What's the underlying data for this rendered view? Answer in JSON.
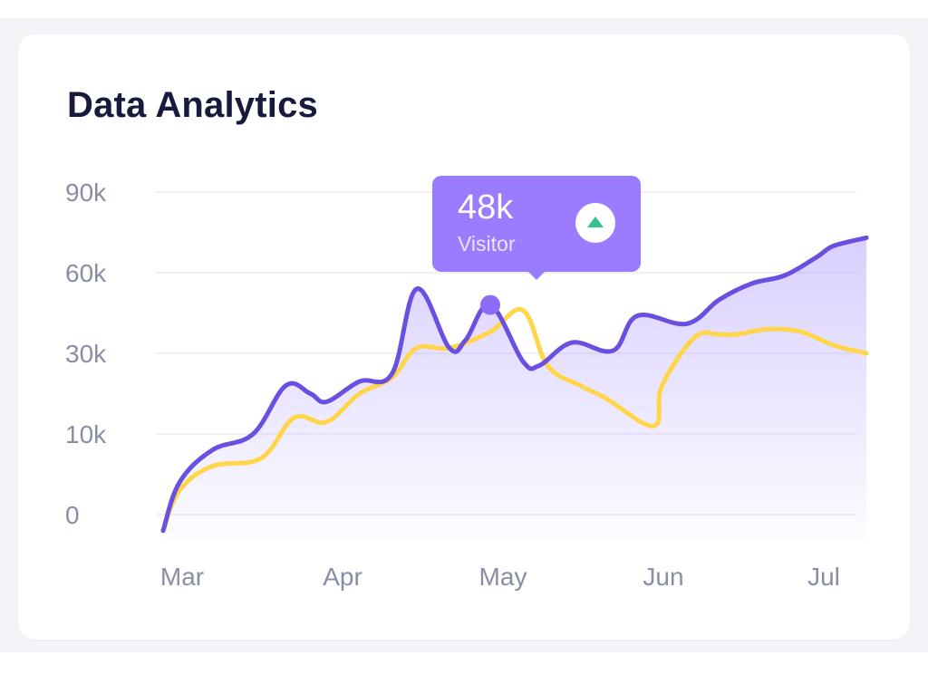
{
  "card": {
    "title": "Data Analytics"
  },
  "tooltip": {
    "value": "48k",
    "label": "Visitor",
    "trend": "up-arrow-icon",
    "trend_color": "#31c48d"
  },
  "colors": {
    "series_visitor": "#6a4fe0",
    "series_secondary": "#ffd54a",
    "area_fill": "#b9a8ff",
    "tooltip_bg": "#9b7bff",
    "title": "#171a3d",
    "tick": "#8a8da6",
    "grid": "#efeff5"
  },
  "chart_data": {
    "type": "line",
    "title": "",
    "xlabel": "",
    "ylabel": "",
    "y_ticks": [
      "0",
      "10k",
      "30k",
      "60k",
      "90k"
    ],
    "x_ticks": [
      "Mar",
      "Apr",
      "May",
      "Jun",
      "Jul"
    ],
    "grid": true,
    "legend": "none",
    "series": [
      {
        "key": "visitor",
        "x": [
          0,
          0.1,
          0.3,
          0.55,
          0.75,
          0.9,
          1.0,
          1.2,
          1.4,
          1.55,
          1.75,
          1.85,
          2.0,
          2.2,
          2.3,
          2.5,
          2.75,
          2.9,
          3.2,
          3.4,
          3.6,
          3.8,
          4.0,
          4.1,
          4.3
        ],
        "y": [
          -2,
          4,
          8,
          10,
          22,
          20,
          18,
          23,
          25,
          54,
          32,
          35,
          48,
          28,
          27,
          34,
          31,
          44,
          41,
          50,
          56,
          59,
          66,
          70,
          73
        ],
        "area": true,
        "highlight_index": 12
      },
      {
        "key": "secondary",
        "x": [
          0,
          0.1,
          0.3,
          0.6,
          0.8,
          1.0,
          1.2,
          1.4,
          1.55,
          1.75,
          2.0,
          2.2,
          2.35,
          2.55,
          2.7,
          3.0,
          3.05,
          3.25,
          3.4,
          3.5,
          3.7,
          3.9,
          4.1,
          4.3
        ],
        "y": [
          -2,
          3,
          6,
          7,
          14,
          13,
          20,
          24,
          32,
          32,
          38,
          46,
          27,
          22,
          19,
          12,
          22,
          36,
          37,
          37,
          39,
          38,
          33,
          30
        ],
        "area": false
      }
    ]
  }
}
